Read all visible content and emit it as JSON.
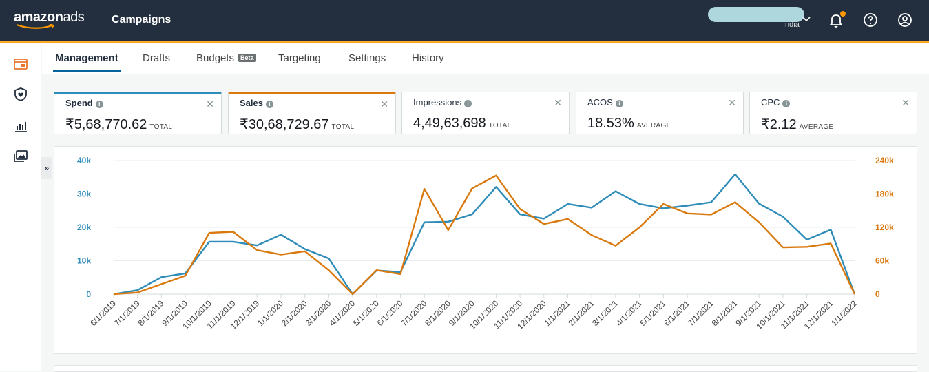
{
  "header": {
    "logo_main": "amazon",
    "logo_sub": "ads",
    "app_title": "Campaigns",
    "account_country": "India"
  },
  "sidebar": {
    "icons": [
      "campaign-manager-icon",
      "brand-shield-icon",
      "reports-icon",
      "creative-assets-icon"
    ],
    "collapse_label": "»"
  },
  "tabs": [
    {
      "label": "Management",
      "active": true
    },
    {
      "label": "Drafts",
      "active": false
    },
    {
      "label": "Budgets",
      "active": false,
      "badge": "Beta"
    },
    {
      "label": "Targeting",
      "active": false
    },
    {
      "label": "Settings",
      "active": false
    },
    {
      "label": "History",
      "active": false
    }
  ],
  "metrics": [
    {
      "label": "Spend",
      "value": "₹5,68,770.62",
      "unit": "TOTAL",
      "selected": "blue"
    },
    {
      "label": "Sales",
      "value": "₹30,68,729.67",
      "unit": "TOTAL",
      "selected": "orange"
    },
    {
      "label": "Impressions",
      "value": "4,49,63,698",
      "unit": "TOTAL",
      "selected": ""
    },
    {
      "label": "ACOS",
      "value": "18.53%",
      "unit": "AVERAGE",
      "selected": ""
    },
    {
      "label": "CPC",
      "value": "₹2.12",
      "unit": "AVERAGE",
      "selected": ""
    }
  ],
  "colors": {
    "spend": "#2e8cb8",
    "sales": "#d9790d",
    "header_bg": "#232f3e",
    "accent": "#ff9900"
  },
  "chart_data": {
    "type": "line",
    "x": [
      "6/1/2019",
      "7/1/2019",
      "8/1/2019",
      "9/1/2019",
      "10/1/2019",
      "11/1/2019",
      "12/1/2019",
      "1/1/2020",
      "2/1/2020",
      "3/1/2020",
      "4/1/2020",
      "5/1/2020",
      "6/1/2020",
      "7/1/2020",
      "8/1/2020",
      "9/1/2020",
      "10/1/2020",
      "11/1/2020",
      "12/1/2020",
      "1/1/2021",
      "2/1/2021",
      "3/1/2021",
      "4/1/2021",
      "5/1/2021",
      "6/1/2021",
      "7/1/2021",
      "8/1/2021",
      "9/1/2021",
      "10/1/2021",
      "11/1/2021",
      "12/1/2021",
      "1/1/2022"
    ],
    "series": [
      {
        "axis": "left",
        "color": "#2e8cb8",
        "values": [
          0,
          1200,
          5100,
          6200,
          15700,
          15700,
          14600,
          17800,
          13500,
          10700,
          0,
          7100,
          6600,
          21500,
          21700,
          23900,
          32100,
          23900,
          22600,
          27000,
          25900,
          30800,
          27000,
          25700,
          26500,
          27500,
          35900,
          27100,
          23200,
          16300,
          19300,
          0
        ]
      },
      {
        "axis": "right",
        "color": "#d9790d",
        "values": [
          0,
          3000,
          18000,
          33000,
          110000,
          112000,
          79000,
          71000,
          77000,
          43000,
          0,
          43000,
          36000,
          189000,
          115000,
          190000,
          213000,
          153000,
          126000,
          135000,
          106000,
          87000,
          120000,
          162000,
          145000,
          143000,
          165000,
          129000,
          84000,
          85000,
          91000,
          0
        ]
      }
    ],
    "y_left": {
      "ticks": [
        "0",
        "10k",
        "20k",
        "30k",
        "40k"
      ],
      "range": [
        0,
        40000
      ]
    },
    "y_right": {
      "ticks": [
        "0",
        "60k",
        "120k",
        "180k",
        "240k"
      ],
      "range": [
        0,
        240000
      ]
    },
    "grid": true
  }
}
